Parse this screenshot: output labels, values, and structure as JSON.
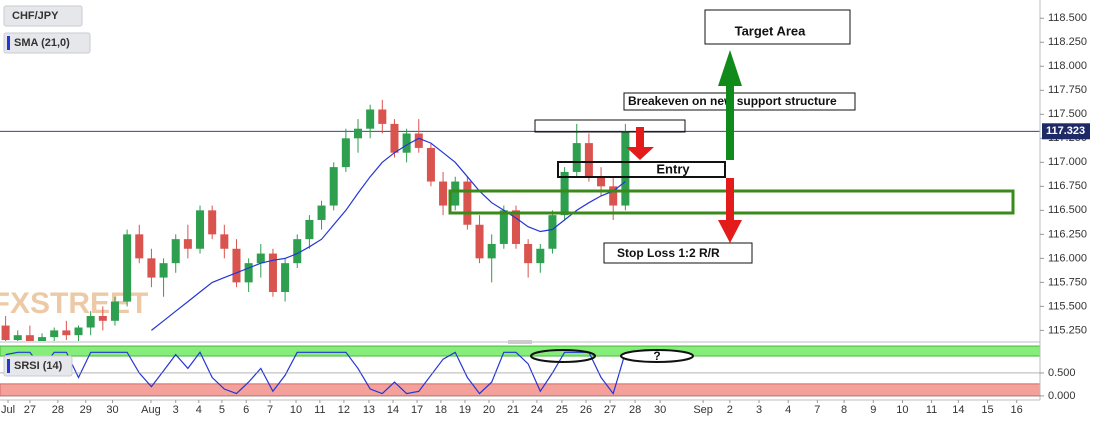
{
  "chart_data": {
    "type": "candlestick",
    "title": "CHF/JPY",
    "watermark": "FXSTREET",
    "x": [
      -1.0,
      -0.5,
      0,
      0.5,
      1.0,
      1.5,
      2.0,
      2.5,
      3.0,
      3.5,
      4.0,
      4.5,
      5.0,
      5.5,
      6.0,
      6.5,
      7.0,
      7.5,
      8.0,
      8.5,
      9.0,
      9.5,
      10.0,
      10.5,
      11.0,
      11.5,
      12.0,
      12.5,
      13.0,
      13.5,
      14.0,
      14.5,
      15.0,
      15.5,
      16.0,
      16.5,
      17.0,
      17.5,
      18.0,
      18.5,
      19.0,
      19.5,
      20.0,
      20.5,
      21.0,
      21.5,
      22.0,
      22.5,
      23.0,
      23.5,
      24.0,
      24.5
    ],
    "open": [
      115.3,
      115.15,
      115.2,
      115.12,
      115.18,
      115.25,
      115.2,
      115.28,
      115.4,
      115.35,
      115.55,
      116.25,
      116.0,
      115.8,
      115.95,
      116.2,
      116.1,
      116.5,
      116.25,
      116.1,
      115.75,
      115.95,
      116.05,
      115.65,
      115.95,
      116.2,
      116.4,
      116.55,
      116.95,
      117.25,
      117.35,
      117.55,
      117.4,
      117.1,
      117.3,
      117.15,
      116.8,
      116.55,
      116.8,
      116.35,
      116.0,
      116.15,
      116.5,
      116.15,
      115.95,
      116.1,
      116.45,
      116.9,
      117.2,
      116.85,
      116.75,
      116.55
    ],
    "high": [
      115.4,
      115.25,
      115.3,
      115.22,
      115.28,
      115.35,
      115.3,
      115.45,
      115.5,
      115.6,
      116.3,
      116.35,
      116.1,
      116.0,
      116.25,
      116.35,
      116.55,
      116.55,
      116.35,
      116.2,
      116.0,
      116.15,
      116.1,
      116.0,
      116.25,
      116.45,
      116.6,
      117.0,
      117.35,
      117.45,
      117.6,
      117.65,
      117.45,
      117.35,
      117.45,
      117.2,
      116.9,
      116.85,
      116.85,
      116.45,
      116.25,
      116.55,
      116.55,
      116.2,
      116.15,
      116.5,
      116.95,
      117.4,
      117.3,
      116.95,
      116.85,
      117.4
    ],
    "low": [
      115.1,
      115.05,
      115.1,
      115.02,
      115.08,
      115.15,
      115.1,
      115.2,
      115.25,
      115.3,
      115.5,
      115.95,
      115.7,
      115.6,
      115.85,
      116.0,
      116.05,
      116.2,
      116.0,
      115.7,
      115.65,
      115.8,
      115.6,
      115.55,
      115.9,
      116.1,
      116.3,
      116.5,
      116.9,
      117.1,
      117.25,
      117.3,
      117.05,
      117.0,
      117.1,
      116.75,
      116.45,
      116.5,
      116.3,
      115.95,
      115.75,
      116.1,
      116.1,
      115.8,
      115.85,
      116.05,
      116.4,
      116.85,
      116.8,
      116.65,
      116.4,
      116.5
    ],
    "close": [
      115.15,
      115.2,
      115.12,
      115.18,
      115.25,
      115.2,
      115.28,
      115.4,
      115.35,
      115.55,
      116.25,
      116.0,
      115.8,
      115.95,
      116.2,
      116.1,
      116.5,
      116.25,
      116.1,
      115.75,
      115.95,
      116.05,
      115.65,
      115.95,
      116.2,
      116.4,
      116.55,
      116.95,
      117.25,
      117.35,
      117.55,
      117.4,
      117.1,
      117.3,
      117.15,
      116.8,
      116.55,
      116.8,
      116.35,
      116.0,
      116.15,
      116.5,
      116.15,
      115.95,
      116.1,
      116.45,
      116.9,
      117.2,
      116.85,
      116.75,
      116.55,
      117.323
    ],
    "up_color": "#2e9e4f",
    "down_color": "#d9534f",
    "last_price": 117.323,
    "sma": {
      "name": "SMA (21,0)",
      "color": "#2336d8",
      "x": [
        5.0,
        5.5,
        6.0,
        6.5,
        7.0,
        7.5,
        8.0,
        8.5,
        9.0,
        9.5,
        10.0,
        10.5,
        11.0,
        11.5,
        12.0,
        12.5,
        13.0,
        13.5,
        14.0,
        14.5,
        15.0,
        15.5,
        16.0,
        16.5,
        17.0,
        17.5,
        18.0,
        18.5,
        19.0,
        19.5,
        20.0,
        20.5,
        21.0,
        21.5,
        22.0,
        22.5,
        23.0,
        23.5,
        24.0,
        24.5
      ],
      "values": [
        115.25,
        115.35,
        115.45,
        115.55,
        115.65,
        115.75,
        115.8,
        115.85,
        115.9,
        115.95,
        115.98,
        116.0,
        116.05,
        116.12,
        116.2,
        116.35,
        116.5,
        116.68,
        116.85,
        117.0,
        117.1,
        117.18,
        117.25,
        117.2,
        117.1,
        117.0,
        116.85,
        116.7,
        116.58,
        116.5,
        116.42,
        116.33,
        116.28,
        116.3,
        116.4,
        116.5,
        116.58,
        116.65,
        116.7,
        116.8
      ]
    },
    "srsi": {
      "name": "SRSI (14)",
      "color": "#2336d8",
      "values": [
        0.9,
        0.95,
        0.95,
        0.6,
        0.95,
        0.95,
        0.4,
        0.95,
        0.95,
        0.95,
        0.95,
        0.5,
        0.2,
        0.55,
        0.9,
        0.6,
        0.95,
        0.4,
        0.15,
        0.05,
        0.3,
        0.6,
        0.1,
        0.45,
        0.95,
        0.95,
        0.95,
        0.95,
        0.95,
        0.6,
        0.15,
        0.05,
        0.3,
        0.05,
        0.1,
        0.45,
        0.8,
        0.95,
        0.4,
        0.05,
        0.3,
        0.95,
        0.95,
        0.7,
        0.1,
        0.5,
        0.95,
        0.95,
        0.95,
        0.4,
        0.05,
        0.95
      ],
      "ylim": [
        -0.09,
        1.11
      ],
      "yticks": [
        {
          "value": 0,
          "label": "0.000"
        },
        {
          "value": 0.5,
          "label": "0.500"
        }
      ]
    },
    "xlim": [
      -1.23,
      41.56
    ],
    "ylim": [
      115.15,
      118.69
    ],
    "yticks": [
      {
        "value": 115.25,
        "label": "115.250"
      },
      {
        "value": 115.5,
        "label": "115.500"
      },
      {
        "value": 115.75,
        "label": "115.750"
      },
      {
        "value": 116,
        "label": "116.000"
      },
      {
        "value": 116.25,
        "label": "116.250"
      },
      {
        "value": 116.5,
        "label": "116.500"
      },
      {
        "value": 116.75,
        "label": "116.750"
      },
      {
        "value": 117,
        "label": "117.000"
      },
      {
        "value": 117.25,
        "label": "117.250"
      },
      {
        "value": 117.5,
        "label": "117.500"
      },
      {
        "value": 117.75,
        "label": "117.750"
      },
      {
        "value": 118,
        "label": "118.000"
      },
      {
        "value": 118.25,
        "label": "118.250"
      },
      {
        "value": 118.5,
        "label": "118.500"
      }
    ],
    "xticks": [
      {
        "value": -0.9,
        "label": "Jul"
      },
      {
        "value": 0,
        "label": "27"
      },
      {
        "value": 1.15,
        "label": "28"
      },
      {
        "value": 2.3,
        "label": "29"
      },
      {
        "value": 3.4,
        "label": "30"
      },
      {
        "value": 4.98,
        "label": "Aug"
      },
      {
        "value": 6.0,
        "label": "3"
      },
      {
        "value": 6.95,
        "label": "4"
      },
      {
        "value": 7.9,
        "label": "5"
      },
      {
        "value": 8.9,
        "label": "6"
      },
      {
        "value": 9.88,
        "label": "7"
      },
      {
        "value": 10.95,
        "label": "10"
      },
      {
        "value": 11.93,
        "label": "11"
      },
      {
        "value": 12.92,
        "label": "12"
      },
      {
        "value": 13.95,
        "label": "13"
      },
      {
        "value": 14.94,
        "label": "14"
      },
      {
        "value": 15.93,
        "label": "17"
      },
      {
        "value": 16.91,
        "label": "18"
      },
      {
        "value": 17.9,
        "label": "19"
      },
      {
        "value": 18.89,
        "label": "20"
      },
      {
        "value": 19.88,
        "label": "21"
      },
      {
        "value": 20.86,
        "label": "24"
      },
      {
        "value": 21.89,
        "label": "25"
      },
      {
        "value": 22.88,
        "label": "26"
      },
      {
        "value": 23.87,
        "label": "27"
      },
      {
        "value": 24.9,
        "label": "28"
      },
      {
        "value": 25.93,
        "label": "30"
      },
      {
        "value": 27.7,
        "label": "Sep"
      },
      {
        "value": 28.8,
        "label": "2"
      },
      {
        "value": 30.0,
        "label": "3"
      },
      {
        "value": 31.2,
        "label": "4"
      },
      {
        "value": 32.4,
        "label": "7"
      },
      {
        "value": 33.5,
        "label": "8"
      },
      {
        "value": 34.7,
        "label": "9"
      },
      {
        "value": 35.9,
        "label": "10"
      },
      {
        "value": 37.1,
        "label": "11"
      },
      {
        "value": 38.2,
        "label": "14"
      },
      {
        "value": 39.4,
        "label": "15"
      },
      {
        "value": 40.6,
        "label": "16"
      }
    ],
    "annotations": [
      "Target Area",
      "Breakeven on new support structure",
      "Entry",
      "Stop Loss 1:2 R/R",
      "?"
    ]
  }
}
